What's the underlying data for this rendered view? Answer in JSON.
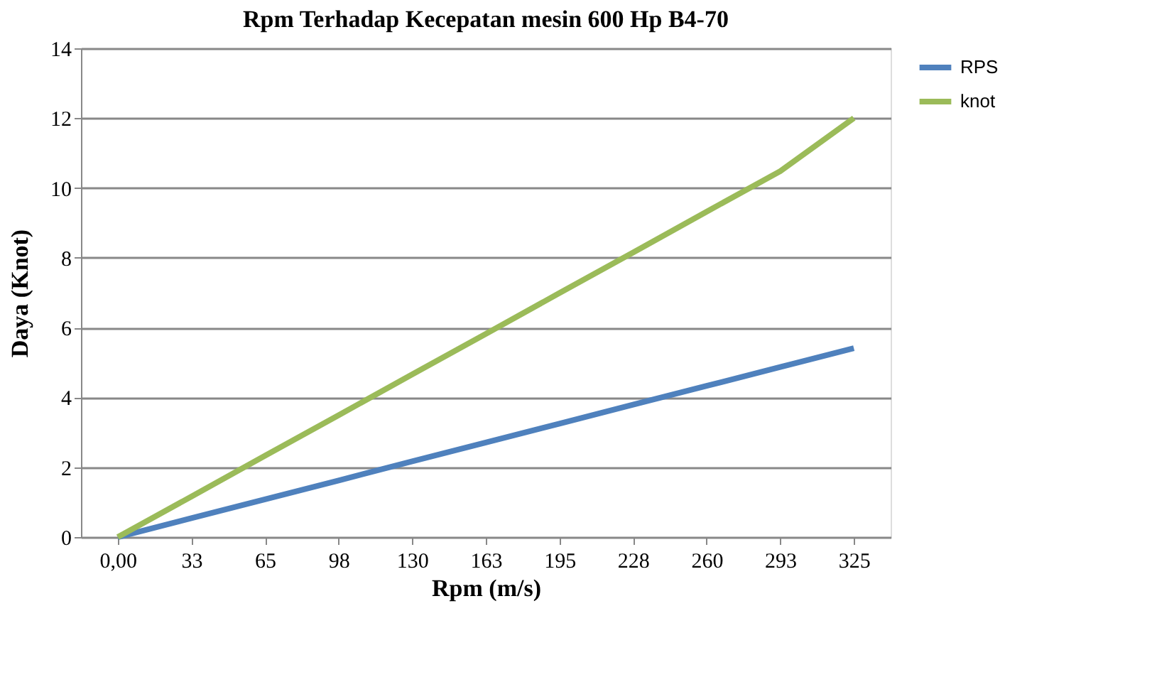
{
  "chart_data": {
    "type": "line",
    "title": "Rpm Terhadap Kecepatan mesin 600 Hp  B4-70",
    "xlabel": "Rpm (m/s)",
    "ylabel": "Daya (Knot)",
    "categories": [
      "0,00",
      "33",
      "65",
      "98",
      "130",
      "163",
      "195",
      "228",
      "260",
      "293",
      "325"
    ],
    "series": [
      {
        "name": "RPS",
        "color": "#4f81bd",
        "values": [
          0,
          0.54,
          1.08,
          1.62,
          2.17,
          2.71,
          3.25,
          3.79,
          4.33,
          4.87,
          5.41
        ]
      },
      {
        "name": "knot",
        "color": "#9bbb59",
        "values": [
          0,
          1.16,
          2.33,
          3.49,
          4.66,
          5.82,
          6.99,
          8.15,
          9.32,
          10.48,
          12.0
        ]
      }
    ],
    "ylim": [
      0,
      14
    ],
    "yticks": [
      0,
      2,
      4,
      6,
      8,
      10,
      12,
      14
    ],
    "grid": "y",
    "legend": "right",
    "marker": "none",
    "line_style": "solid"
  }
}
